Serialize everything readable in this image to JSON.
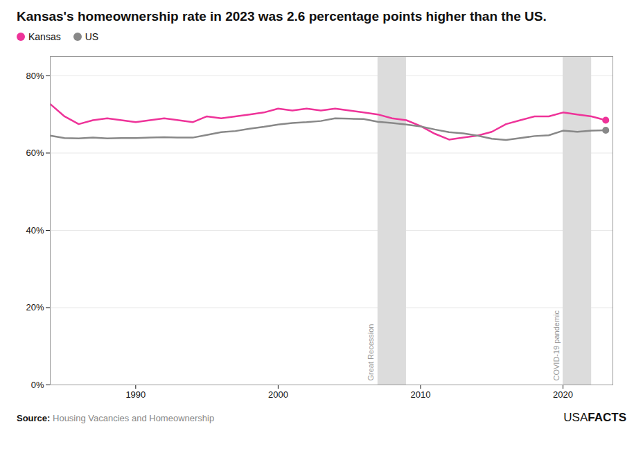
{
  "chart_data": {
    "type": "line",
    "title": "Kansas's homeownership rate in 2023 was 2.6 percentage points higher than the US.",
    "x": [
      1984,
      1985,
      1986,
      1987,
      1988,
      1989,
      1990,
      1991,
      1992,
      1993,
      1994,
      1995,
      1996,
      1997,
      1998,
      1999,
      2000,
      2001,
      2002,
      2003,
      2004,
      2005,
      2006,
      2007,
      2008,
      2009,
      2010,
      2011,
      2012,
      2013,
      2014,
      2015,
      2016,
      2017,
      2018,
      2019,
      2020,
      2021,
      2022,
      2023
    ],
    "series": [
      {
        "name": "Kansas",
        "color": "#EE3399",
        "values": [
          72.7,
          69.5,
          67.5,
          68.5,
          69.0,
          68.5,
          68.0,
          68.5,
          69.0,
          68.5,
          68.0,
          69.5,
          69.0,
          69.5,
          70.0,
          70.5,
          71.5,
          71.0,
          71.5,
          71.0,
          71.5,
          71.0,
          70.5,
          70.0,
          69.0,
          68.5,
          67.0,
          65.0,
          63.5,
          64.0,
          64.5,
          65.5,
          67.5,
          68.5,
          69.5,
          69.5,
          70.5,
          70.0,
          69.5,
          68.5
        ]
      },
      {
        "name": "US",
        "color": "#888888",
        "values": [
          64.5,
          63.9,
          63.8,
          64.0,
          63.8,
          63.9,
          63.9,
          64.0,
          64.1,
          64.0,
          64.0,
          64.7,
          65.4,
          65.7,
          66.3,
          66.8,
          67.4,
          67.8,
          68.0,
          68.3,
          69.0,
          68.9,
          68.8,
          68.1,
          67.8,
          67.4,
          66.9,
          66.1,
          65.4,
          65.1,
          64.5,
          63.7,
          63.4,
          63.9,
          64.4,
          64.6,
          65.8,
          65.5,
          65.8,
          65.9
        ]
      }
    ],
    "xlim": [
      1984,
      2023.5
    ],
    "xticks": [
      1990,
      2000,
      2010,
      2020
    ],
    "ylim": [
      0,
      85
    ],
    "yticks": [
      {
        "value": 0,
        "label": "0%"
      },
      {
        "value": 20,
        "label": "20%"
      },
      {
        "value": 40,
        "label": "40%"
      },
      {
        "value": 60,
        "label": "60%"
      },
      {
        "value": 80,
        "label": "80%"
      }
    ],
    "grid": "y",
    "legend": "upper left",
    "shaded_regions": [
      {
        "label": "Great Recession",
        "start": 2007,
        "end": 2009,
        "color": "#DCDCDC"
      },
      {
        "label": "COVID-19 pandemic",
        "start": 2020,
        "end": 2022,
        "color": "#DCDCDC"
      }
    ],
    "source_label": "Source:",
    "source": "Housing Vacancies and Homeownership",
    "source_color": "#888888",
    "brand": [
      "USA",
      "FACTS"
    ]
  }
}
